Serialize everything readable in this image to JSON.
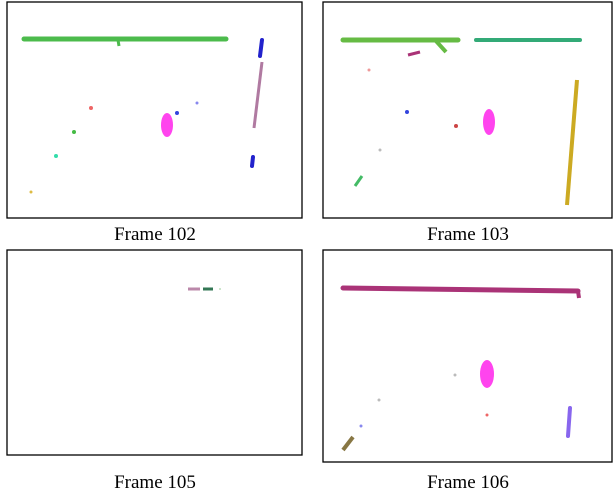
{
  "panels": [
    {
      "caption": "Frame 102"
    },
    {
      "caption": "Frame 103"
    },
    {
      "caption": "Frame 105"
    },
    {
      "caption": "Frame 106"
    }
  ]
}
